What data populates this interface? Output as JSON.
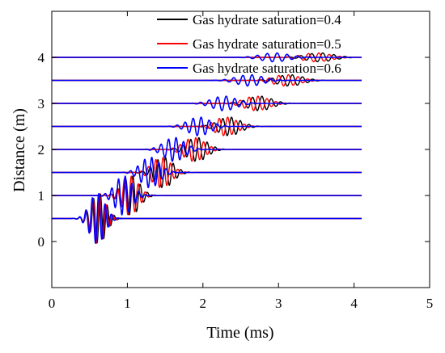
{
  "chart_data": {
    "type": "line",
    "title": "",
    "xlabel": "Time (ms)",
    "ylabel": "Distance (m)",
    "xlim": [
      0,
      5
    ],
    "ylim": [
      -1,
      5
    ],
    "xticks": [
      "0",
      "1",
      "2",
      "3",
      "4",
      "5"
    ],
    "yticks": [
      "0",
      "1",
      "2",
      "3",
      "4"
    ],
    "grid": false,
    "legend_position": "top-right",
    "trace_offsets_m": [
      0.5,
      1.0,
      1.5,
      2.0,
      2.5,
      3.0,
      3.5,
      4.0
    ],
    "series": [
      {
        "name": "Gas hydrate saturation=0.4",
        "color": "#000000",
        "arrival_ms": [
          0.62,
          1.05,
          1.48,
          1.92,
          2.35,
          2.75,
          3.15,
          3.55
        ]
      },
      {
        "name": "Gas hydrate saturation=0.5",
        "color": "#ff0000",
        "arrival_ms": [
          0.61,
          1.03,
          1.45,
          1.88,
          2.3,
          2.7,
          3.1,
          3.5
        ]
      },
      {
        "name": "Gas hydrate saturation=0.6",
        "color": "#0000ff",
        "arrival_ms": [
          0.6,
          0.95,
          1.3,
          1.62,
          1.95,
          2.28,
          2.62,
          2.95
        ]
      }
    ]
  }
}
